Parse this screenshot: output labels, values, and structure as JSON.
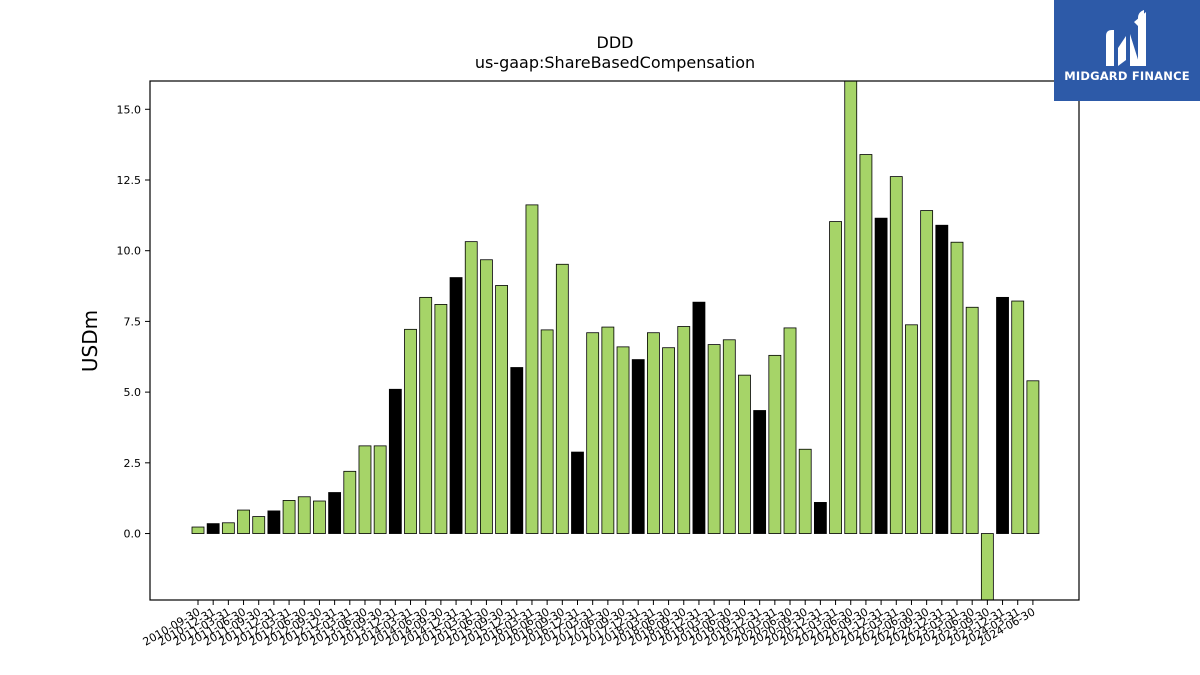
{
  "chart_data": {
    "type": "bar",
    "title": "DDD",
    "subtitle": "us-gaap:ShareBasedCompensation",
    "xlabel": "",
    "ylabel": "USDm",
    "ylim": [
      -2.35,
      16.0
    ],
    "yticks": [
      "0.0",
      "2.5",
      "5.0",
      "7.5",
      "10.0",
      "12.5",
      "15.0"
    ],
    "colors": {
      "quarter": "#a6d468",
      "annual": "#000000",
      "edge": "#000000"
    },
    "categories": [
      "2010-09-30",
      "2010-12-31",
      "2011-03-31",
      "2011-06-30",
      "2011-09-30",
      "2011-12-31",
      "2012-03-31",
      "2012-06-30",
      "2012-09-30",
      "2012-12-31",
      "2013-03-31",
      "2013-06-30",
      "2013-09-30",
      "2013-12-31",
      "2014-03-31",
      "2014-06-30",
      "2014-09-30",
      "2014-12-31",
      "2015-03-31",
      "2015-06-30",
      "2015-09-30",
      "2015-12-31",
      "2016-03-31",
      "2016-06-30",
      "2016-09-30",
      "2016-12-31",
      "2017-03-31",
      "2017-06-30",
      "2017-09-30",
      "2017-12-31",
      "2018-03-31",
      "2018-06-30",
      "2018-09-30",
      "2018-12-31",
      "2019-03-31",
      "2019-06-30",
      "2019-09-30",
      "2019-12-31",
      "2020-03-31",
      "2020-06-30",
      "2020-09-30",
      "2020-12-31",
      "2021-03-31",
      "2021-06-30",
      "2021-09-30",
      "2021-12-31",
      "2022-03-31",
      "2022-06-30",
      "2022-09-30",
      "2022-12-31",
      "2023-03-31",
      "2023-06-30",
      "2023-09-30",
      "2023-12-31",
      "2024-03-31",
      "2024-06-30"
    ],
    "values": [
      0.23,
      0.35,
      0.38,
      0.83,
      0.6,
      0.8,
      1.17,
      1.3,
      1.15,
      1.45,
      2.2,
      3.1,
      3.1,
      5.1,
      7.22,
      8.35,
      8.1,
      9.05,
      10.32,
      9.68,
      8.77,
      5.87,
      11.62,
      7.2,
      9.52,
      2.88,
      7.1,
      7.3,
      6.6,
      6.15,
      7.1,
      6.57,
      7.32,
      8.18,
      6.68,
      6.85,
      5.6,
      4.35,
      6.3,
      7.27,
      2.98,
      1.1,
      11.03,
      16.0,
      13.4,
      11.15,
      12.62,
      7.38,
      11.42,
      10.9,
      10.3,
      8.0,
      -2.4,
      8.35,
      8.22,
      5.4
    ],
    "annual": [
      false,
      true,
      false,
      false,
      false,
      true,
      false,
      false,
      false,
      true,
      false,
      false,
      false,
      true,
      false,
      false,
      false,
      true,
      false,
      false,
      false,
      true,
      false,
      false,
      false,
      true,
      false,
      false,
      false,
      true,
      false,
      false,
      false,
      true,
      false,
      false,
      false,
      true,
      false,
      false,
      false,
      true,
      false,
      false,
      false,
      true,
      false,
      false,
      false,
      true,
      false,
      false,
      false,
      true,
      false,
      false
    ]
  },
  "logo": {
    "brand": "MIDGARD FINANCE",
    "icon": "midgard-m-logo-icon"
  }
}
